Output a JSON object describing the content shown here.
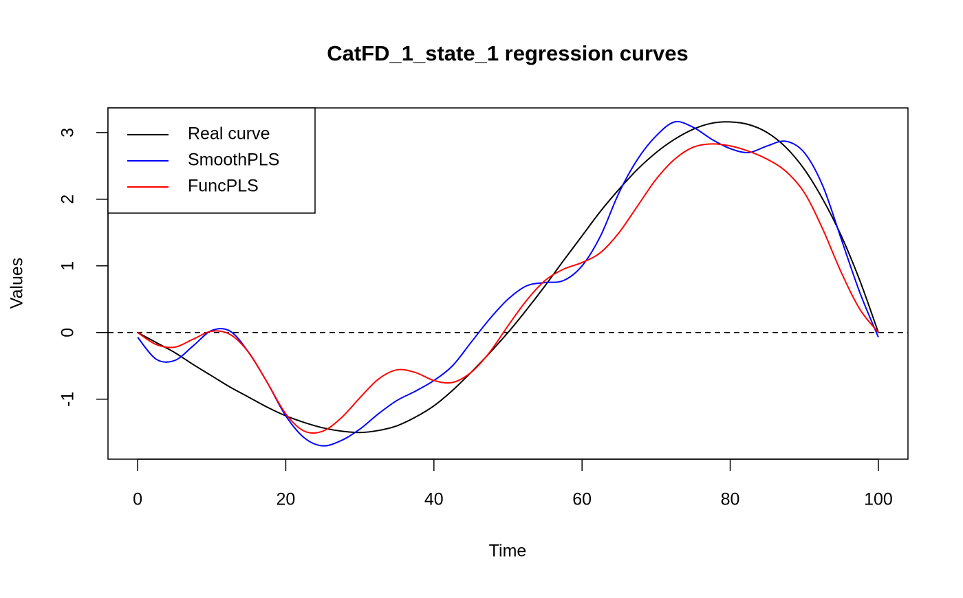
{
  "chart_data": {
    "type": "line",
    "title": "CatFD_1_state_1 regression curves",
    "xlabel": "Time",
    "ylabel": "Values",
    "x": [
      0,
      2.5,
      5,
      7.5,
      10,
      12.5,
      15,
      17.5,
      20,
      22.5,
      25,
      27.5,
      30,
      32.5,
      35,
      37.5,
      40,
      42.5,
      45,
      47.5,
      50,
      52.5,
      55,
      57.5,
      60,
      62.5,
      65,
      67.5,
      70,
      72.5,
      75,
      77.5,
      80,
      82.5,
      85,
      87.5,
      90,
      92.5,
      95,
      97.5,
      100
    ],
    "series": [
      {
        "name": "Real curve",
        "color": "#000000",
        "values": [
          0,
          -0.15,
          -0.3,
          -0.48,
          -0.65,
          -0.82,
          -0.97,
          -1.12,
          -1.25,
          -1.35,
          -1.43,
          -1.48,
          -1.5,
          -1.47,
          -1.4,
          -1.27,
          -1.1,
          -0.87,
          -0.6,
          -0.31,
          0,
          0.34,
          0.7,
          1.08,
          1.45,
          1.82,
          2.15,
          2.45,
          2.7,
          2.9,
          3.05,
          3.14,
          3.16,
          3.12,
          3.0,
          2.78,
          2.45,
          2.0,
          1.45,
          0.78,
          0
        ]
      },
      {
        "name": "SmoothPLS",
        "color": "#0000ff",
        "values": [
          -0.07,
          -0.4,
          -0.42,
          -0.2,
          0.03,
          0.02,
          -0.3,
          -0.75,
          -1.25,
          -1.58,
          -1.7,
          -1.62,
          -1.45,
          -1.22,
          -1.02,
          -0.88,
          -0.72,
          -0.5,
          -0.15,
          0.2,
          0.5,
          0.7,
          0.75,
          0.78,
          1.0,
          1.45,
          2.1,
          2.6,
          2.95,
          3.16,
          3.08,
          2.9,
          2.76,
          2.7,
          2.8,
          2.87,
          2.7,
          2.2,
          1.4,
          0.6,
          -0.07
        ]
      },
      {
        "name": "FuncPLS",
        "color": "#ff0000",
        "values": [
          0,
          -0.18,
          -0.22,
          -0.1,
          0.02,
          -0.03,
          -0.3,
          -0.75,
          -1.22,
          -1.48,
          -1.48,
          -1.28,
          -0.98,
          -0.7,
          -0.56,
          -0.6,
          -0.72,
          -0.75,
          -0.6,
          -0.3,
          0.1,
          0.48,
          0.78,
          0.95,
          1.05,
          1.2,
          1.5,
          1.9,
          2.3,
          2.6,
          2.78,
          2.83,
          2.8,
          2.72,
          2.6,
          2.42,
          2.1,
          1.55,
          0.9,
          0.35,
          0
        ]
      }
    ],
    "hline": 0,
    "xlim": [
      -4,
      104
    ],
    "xticks": [
      0,
      20,
      40,
      60,
      80,
      100
    ],
    "ylim": [
      -1.9,
      3.37
    ],
    "yticks": [
      -1,
      0,
      1,
      2,
      3
    ],
    "legend": "upper left"
  }
}
